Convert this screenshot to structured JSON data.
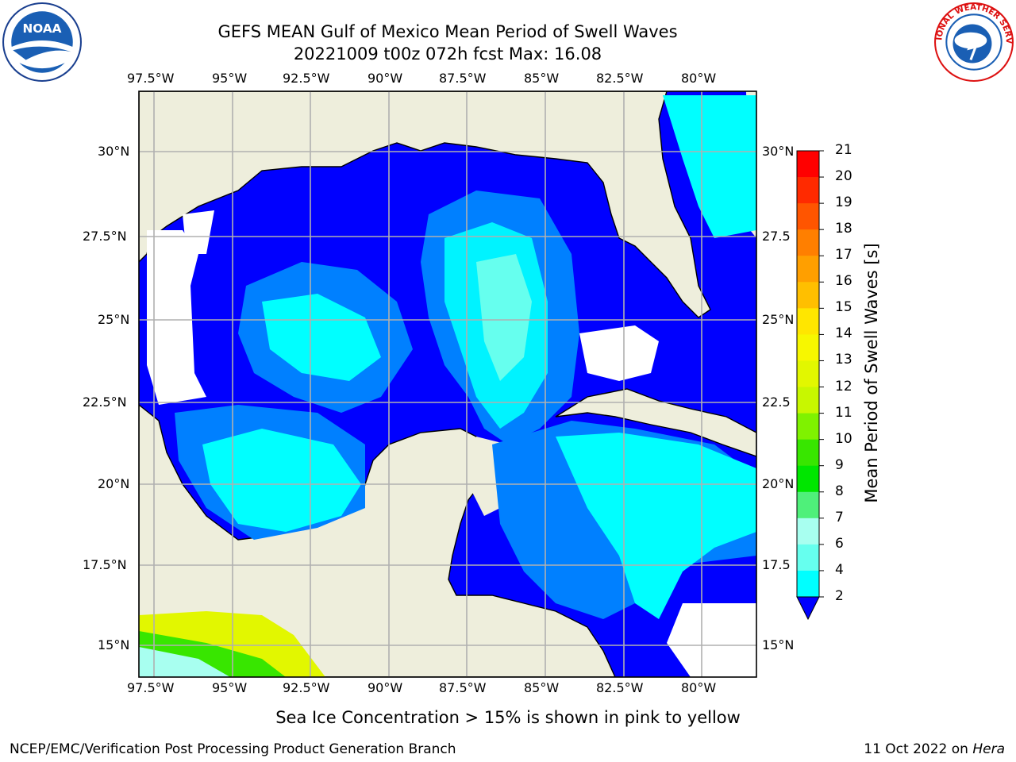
{
  "title_line1": "GEFS MEAN Gulf of Mexico Mean Period of Swell Waves",
  "title_line2": "20221009 t00z 072h fcst   Max: 16.08",
  "map": {
    "lon_labels": [
      "97.5°W",
      "95°W",
      "92.5°W",
      "90°W",
      "87.5°W",
      "85°W",
      "82.5°W",
      "80°W"
    ],
    "lat_labels_left": [
      "30°N",
      "27.5°N",
      "25°N",
      "22.5°N",
      "20°N",
      "17.5°N",
      "15°N"
    ],
    "lat_labels_right": [
      "30°N",
      "27.5",
      "25°N",
      "22.5",
      "20°N",
      "17.5",
      "15°N"
    ],
    "land_color": "#eeeedc",
    "ocean_missing_color": "#ffffff"
  },
  "colorbar": {
    "label": "Mean Period of Swell Waves [s]",
    "ticks": [
      "21",
      "20",
      "19",
      "18",
      "17",
      "16",
      "15",
      "14",
      "13",
      "12",
      "11",
      "10",
      "9",
      "8",
      "7",
      "6",
      "4",
      "2"
    ],
    "colors": [
      "#ff0000",
      "#ff2a00",
      "#ff5500",
      "#ff7f00",
      "#ff9f00",
      "#ffbf00",
      "#ffe600",
      "#f7f700",
      "#e2f700",
      "#c8f700",
      "#7ff200",
      "#38e600",
      "#00e600",
      "#4ff07a",
      "#a8fff0",
      "#66ffee",
      "#00ffff",
      "#00d0ff",
      "#0080ff"
    ],
    "under_color": "#0000ff"
  },
  "footnote": "Sea Ice Concentration > 15% is shown in pink to yellow",
  "credit": "NCEP/EMC/Verification Post Processing Product Generation Branch",
  "date_prefix": "11 Oct 2022 on",
  "date_host": "Hera",
  "logos": {
    "left": "NOAA",
    "right": "NATIONAL WEATHER SERVICE"
  }
}
